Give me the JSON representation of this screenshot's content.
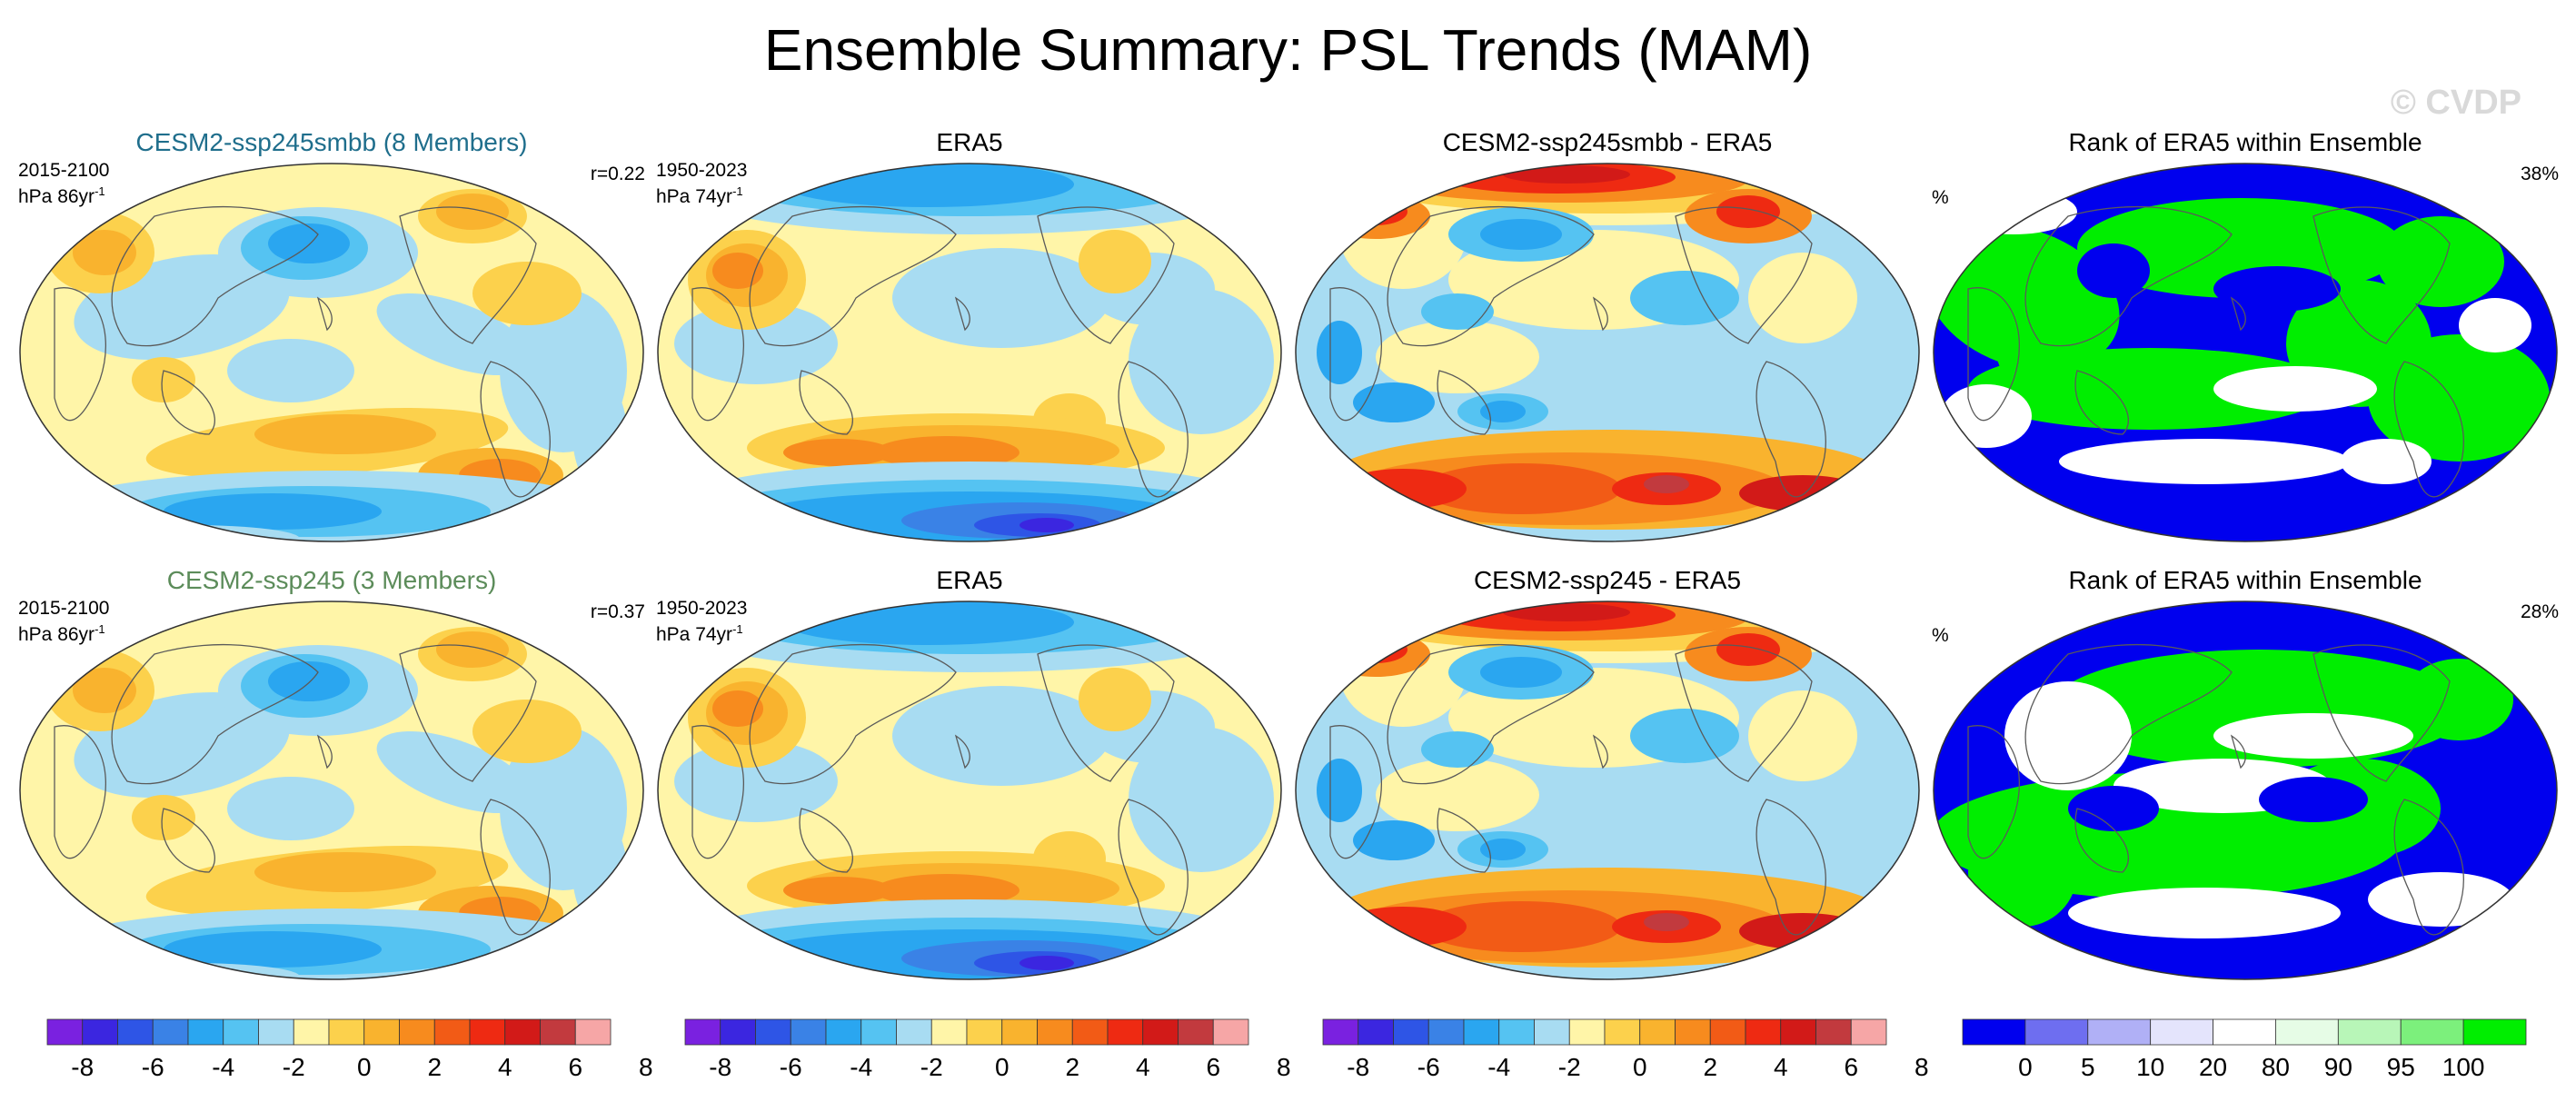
{
  "title": "Ensemble Summary: PSL Trends (MAM)",
  "watermark": "© CVDP",
  "panels": [
    {
      "id": "p11",
      "title": "CESM2-ssp245smbb (8 Members)",
      "info1": "2015-2100",
      "info2": "hPa 86yr",
      "info2_sup": "-1",
      "corner": "r=0.22",
      "kind": "model"
    },
    {
      "id": "p12",
      "title": "ERA5",
      "info1": "1950-2023",
      "info2": "hPa 74yr",
      "info2_sup": "-1",
      "corner": "",
      "kind": "era"
    },
    {
      "id": "p13",
      "title": "CESM2-ssp245smbb - ERA5",
      "info1": "",
      "info2": "",
      "info2_sup": "",
      "corner": "",
      "kind": "diff"
    },
    {
      "id": "p14",
      "title": "Rank of ERA5 within Ensemble",
      "info1": "",
      "info2": "%",
      "info2_sup": "",
      "corner": "38%",
      "kind": "rank"
    },
    {
      "id": "p21",
      "title": "CESM2-ssp245 (3 Members)",
      "info1": "2015-2100",
      "info2": "hPa 86yr",
      "info2_sup": "-1",
      "corner": "r=0.37",
      "kind": "model"
    },
    {
      "id": "p22",
      "title": "ERA5",
      "info1": "1950-2023",
      "info2": "hPa 74yr",
      "info2_sup": "-1",
      "corner": "",
      "kind": "era"
    },
    {
      "id": "p23",
      "title": "CESM2-ssp245 - ERA5",
      "info1": "",
      "info2": "",
      "info2_sup": "",
      "corner": "",
      "kind": "diff"
    },
    {
      "id": "p24",
      "title": "Rank of ERA5 within Ensemble",
      "info1": "",
      "info2": "%",
      "info2_sup": "",
      "corner": "28%",
      "kind": "rank"
    }
  ],
  "colorbars": {
    "trend": {
      "colors": [
        "#7a21e0",
        "#3b26e0",
        "#2e55e6",
        "#3a82e6",
        "#2aa6f0",
        "#55c3f2",
        "#a8dcf2",
        "#fff5a8",
        "#fcd14c",
        "#f9b32e",
        "#f78b1e",
        "#f25b16",
        "#ee2a12",
        "#d21a18",
        "#c23a3e",
        "#f6a6a6"
      ],
      "labels": [
        "-8",
        "-6",
        "-4",
        "-2",
        "0",
        "2",
        "4",
        "6",
        "8"
      ]
    },
    "rank": {
      "colors": [
        "#0000ee",
        "#6e6ef0",
        "#b0b0f6",
        "#e4e4fc",
        "#ffffff",
        "#e6fce6",
        "#b8f6b8",
        "#7cf07c",
        "#00ee00"
      ],
      "labels": [
        "0",
        "5",
        "10",
        "20",
        "80",
        "90",
        "95",
        "100"
      ]
    }
  },
  "colors": {
    "title_blue": "#1f6e8c",
    "title_green": "#5c8c5a",
    "coast": "#5a5a5a"
  }
}
